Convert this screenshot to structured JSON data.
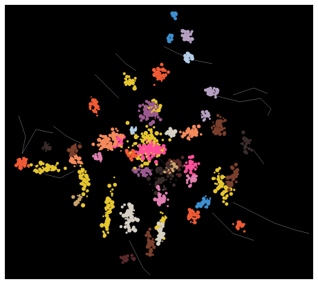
{
  "figure": {
    "background": "#000000",
    "border_color": "#ffffff",
    "edge_color": "#cfcfcf"
  },
  "communities": [
    {
      "id": "c1",
      "color": "#e6c62f"
    },
    {
      "id": "c2",
      "color": "#f05a35"
    },
    {
      "id": "c3",
      "color": "#ff4f9a"
    },
    {
      "id": "c4",
      "color": "#9b5a8f"
    },
    {
      "id": "c5",
      "color": "#f48a5c"
    },
    {
      "id": "c6",
      "color": "#d6cfc4"
    },
    {
      "id": "c7",
      "color": "#3d8fd0"
    },
    {
      "id": "c8",
      "color": "#b6a0c2"
    },
    {
      "id": "c9",
      "color": "#7a3f2c"
    },
    {
      "id": "c10",
      "color": "#e07fb0"
    },
    {
      "id": "c11",
      "color": "#b4cde8"
    },
    {
      "id": "c12",
      "color": "#5a2a2a"
    },
    {
      "id": "c13",
      "color": "#c9a46b"
    },
    {
      "id": "c14",
      "color": "#3a2b2b"
    }
  ]
}
